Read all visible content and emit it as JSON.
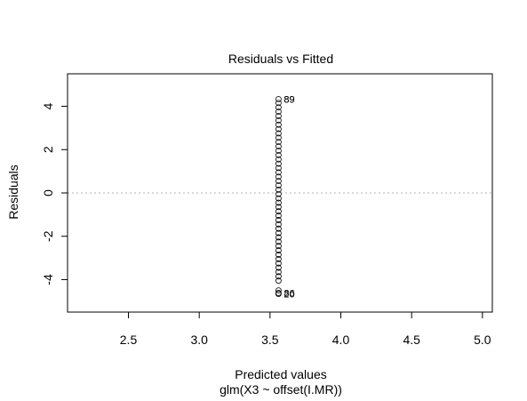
{
  "chart_data": {
    "type": "scatter",
    "title": "Residuals vs Fitted",
    "xlabel": "Predicted values",
    "subtitle": "glm(X3 ~ offset(I.MR))",
    "ylabel": "Residuals",
    "xlim": [
      2.07,
      5.07
    ],
    "ylim": [
      -5.5,
      5.5
    ],
    "x_ticks": [
      2.5,
      3.0,
      3.5,
      4.0,
      4.5,
      5.0
    ],
    "x_tick_labels": [
      "2.5",
      "3.0",
      "3.5",
      "4.0",
      "4.5",
      "5.0"
    ],
    "y_ticks": [
      -4,
      -2,
      0,
      2,
      4
    ],
    "y_tick_labels": [
      "-4",
      "-2",
      "0",
      "2",
      "4"
    ],
    "reference_line": {
      "y": 0,
      "style": "dotted",
      "color": "#b3b3b3"
    },
    "grid": false,
    "point_color": "#000000",
    "points": [
      {
        "x": 3.56,
        "y": 4.33
      },
      {
        "x": 3.56,
        "y": 4.15
      },
      {
        "x": 3.56,
        "y": 3.95
      },
      {
        "x": 3.56,
        "y": 3.75
      },
      {
        "x": 3.56,
        "y": 3.55
      },
      {
        "x": 3.56,
        "y": 3.35
      },
      {
        "x": 3.56,
        "y": 3.15
      },
      {
        "x": 3.56,
        "y": 2.95
      },
      {
        "x": 3.56,
        "y": 2.75
      },
      {
        "x": 3.56,
        "y": 2.55
      },
      {
        "x": 3.56,
        "y": 2.35
      },
      {
        "x": 3.56,
        "y": 2.15
      },
      {
        "x": 3.56,
        "y": 1.95
      },
      {
        "x": 3.56,
        "y": 1.75
      },
      {
        "x": 3.56,
        "y": 1.55
      },
      {
        "x": 3.56,
        "y": 1.35
      },
      {
        "x": 3.56,
        "y": 1.15
      },
      {
        "x": 3.56,
        "y": 0.95
      },
      {
        "x": 3.56,
        "y": 0.75
      },
      {
        "x": 3.56,
        "y": 0.55
      },
      {
        "x": 3.56,
        "y": 0.35
      },
      {
        "x": 3.56,
        "y": 0.15
      },
      {
        "x": 3.56,
        "y": -0.05
      },
      {
        "x": 3.56,
        "y": -0.25
      },
      {
        "x": 3.56,
        "y": -0.45
      },
      {
        "x": 3.56,
        "y": -0.65
      },
      {
        "x": 3.56,
        "y": -0.85
      },
      {
        "x": 3.56,
        "y": -1.05
      },
      {
        "x": 3.56,
        "y": -1.25
      },
      {
        "x": 3.56,
        "y": -1.45
      },
      {
        "x": 3.56,
        "y": -1.65
      },
      {
        "x": 3.56,
        "y": -1.85
      },
      {
        "x": 3.56,
        "y": -2.05
      },
      {
        "x": 3.56,
        "y": -2.25
      },
      {
        "x": 3.56,
        "y": -2.45
      },
      {
        "x": 3.56,
        "y": -2.65
      },
      {
        "x": 3.56,
        "y": -2.85
      },
      {
        "x": 3.56,
        "y": -3.05
      },
      {
        "x": 3.56,
        "y": -3.25
      },
      {
        "x": 3.56,
        "y": -3.45
      },
      {
        "x": 3.56,
        "y": -3.65
      },
      {
        "x": 3.56,
        "y": -3.85
      },
      {
        "x": 3.56,
        "y": -4.05
      },
      {
        "x": 3.56,
        "y": -4.5
      },
      {
        "x": 3.56,
        "y": -4.62
      },
      {
        "x": 3.56,
        "y": -4.66
      }
    ],
    "point_labels": [
      {
        "x": 3.56,
        "y": 4.33,
        "label": "89"
      },
      {
        "x": 3.56,
        "y": 4.33,
        "label": "89"
      },
      {
        "x": 3.56,
        "y": -4.62,
        "label": "86"
      },
      {
        "x": 3.56,
        "y": -4.66,
        "label": "20"
      }
    ]
  }
}
